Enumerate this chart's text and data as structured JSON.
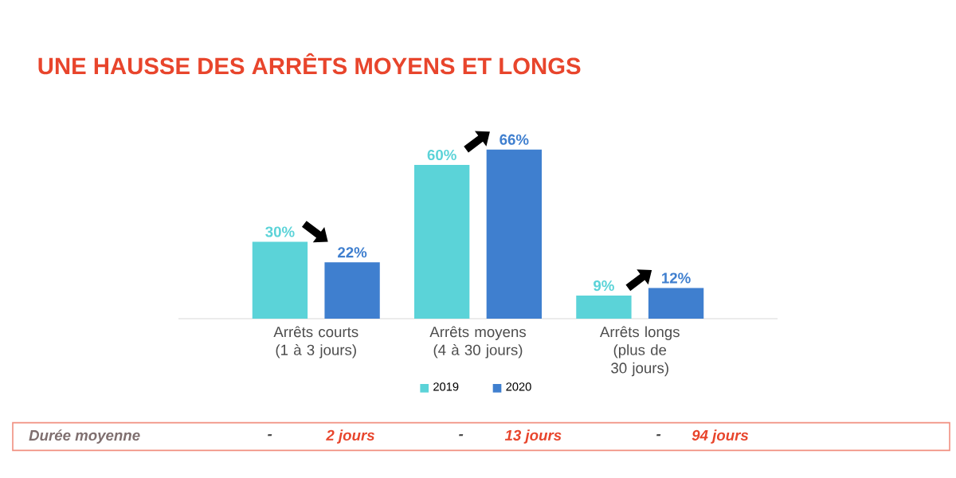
{
  "chart_data": {
    "type": "bar",
    "title": "UNE HAUSSE DES ARRÊTS MOYENS ET LONGS",
    "categories": [
      "Arrêts courts (1 à 3 jours)",
      "Arrêts moyens (4 à 30 jours)",
      "Arrêts longs (plus de 30 jours)"
    ],
    "series": [
      {
        "name": "2019",
        "color": "#5bd3d8",
        "values": [
          30,
          60,
          9
        ],
        "value_labels": [
          "30%",
          "60%",
          "9%"
        ]
      },
      {
        "name": "2020",
        "color": "#3f7fcf",
        "values": [
          22,
          66,
          12
        ],
        "value_labels": [
          "22%",
          "66%",
          "12%"
        ]
      }
    ],
    "tick_labels": "x",
    "legend": "bottom",
    "annotations": [
      "Durée moyenne",
      "-",
      "2 jours",
      "-",
      "13 jours",
      "-",
      "94 jours"
    ]
  }
}
